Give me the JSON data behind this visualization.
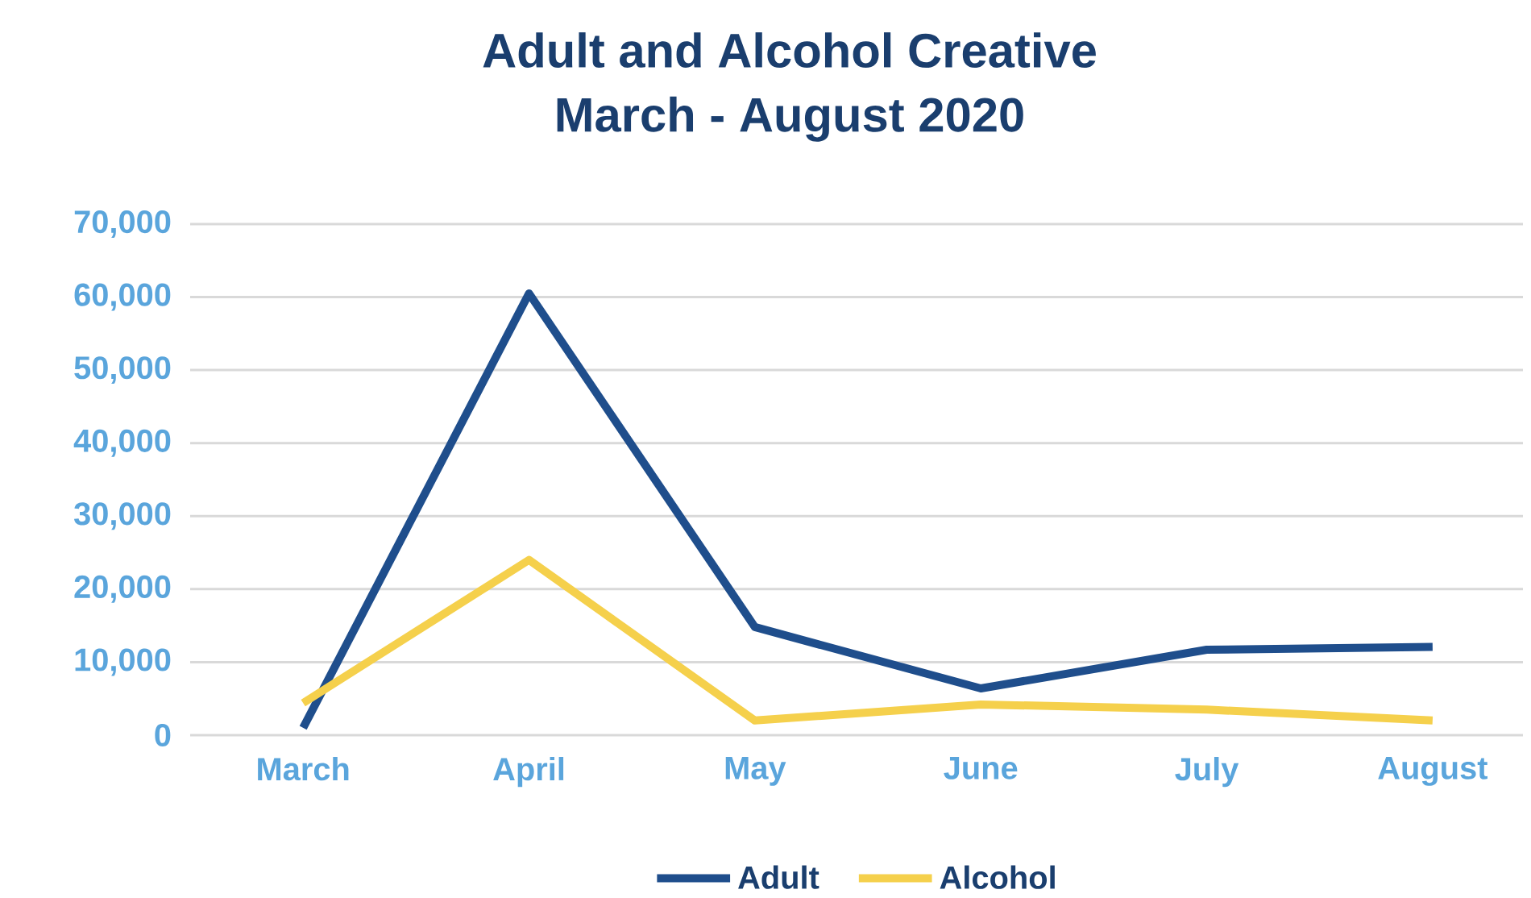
{
  "chart_data": {
    "type": "line",
    "title": "Adult and Alcohol Creative\nMarch - August 2020",
    "categories": [
      "March",
      "April",
      "May",
      "June",
      "July",
      "August"
    ],
    "series": [
      {
        "name": "Adult",
        "color": "#1f4e8c",
        "values": [
          1000,
          60500,
          14800,
          6400,
          11700,
          12100
        ]
      },
      {
        "name": "Alcohol",
        "color": "#f5d04c",
        "values": [
          4400,
          24000,
          2000,
          4200,
          3500,
          2000
        ]
      }
    ],
    "ylim": [
      0,
      70000
    ],
    "yticks": [
      {
        "value": 0,
        "label": "0"
      },
      {
        "value": 10000,
        "label": "10,000"
      },
      {
        "value": 20000,
        "label": "20,000"
      },
      {
        "value": 30000,
        "label": "30,000"
      },
      {
        "value": 40000,
        "label": "40,000"
      },
      {
        "value": 50000,
        "label": "50,000"
      },
      {
        "value": 60000,
        "label": "60,000"
      },
      {
        "value": 70000,
        "label": "70,000"
      }
    ],
    "grid": "y",
    "legend": "bottom",
    "marker": "none",
    "line_style": "solid"
  }
}
